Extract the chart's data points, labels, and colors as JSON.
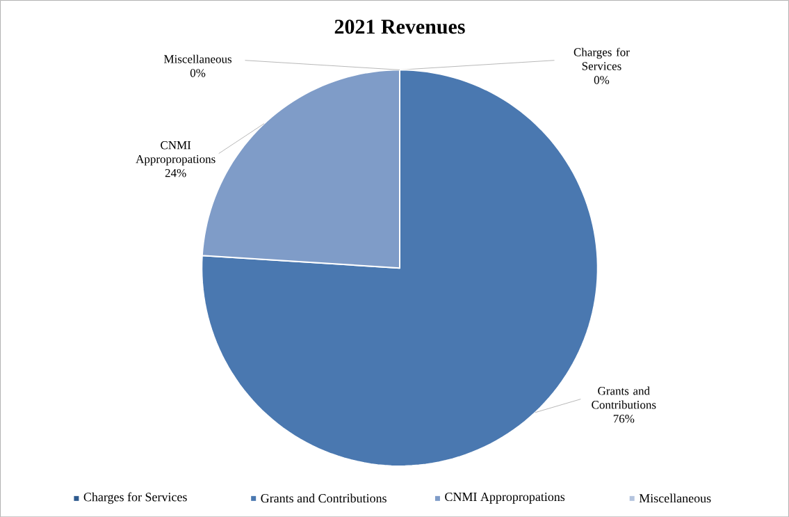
{
  "chart_data": {
    "type": "pie",
    "title": "2021 Revenues",
    "categories": [
      "Charges for Services",
      "Grants and Contributions",
      "CNMI Appropropations",
      "Miscellaneous"
    ],
    "values": [
      0,
      76,
      24,
      0
    ],
    "value_labels": [
      "0%",
      "76%",
      "24%",
      "0%"
    ],
    "colors": [
      "#2e5a8e",
      "#4a78b0",
      "#7f9cc8",
      "#b4c4de"
    ],
    "legend": "bottom"
  }
}
